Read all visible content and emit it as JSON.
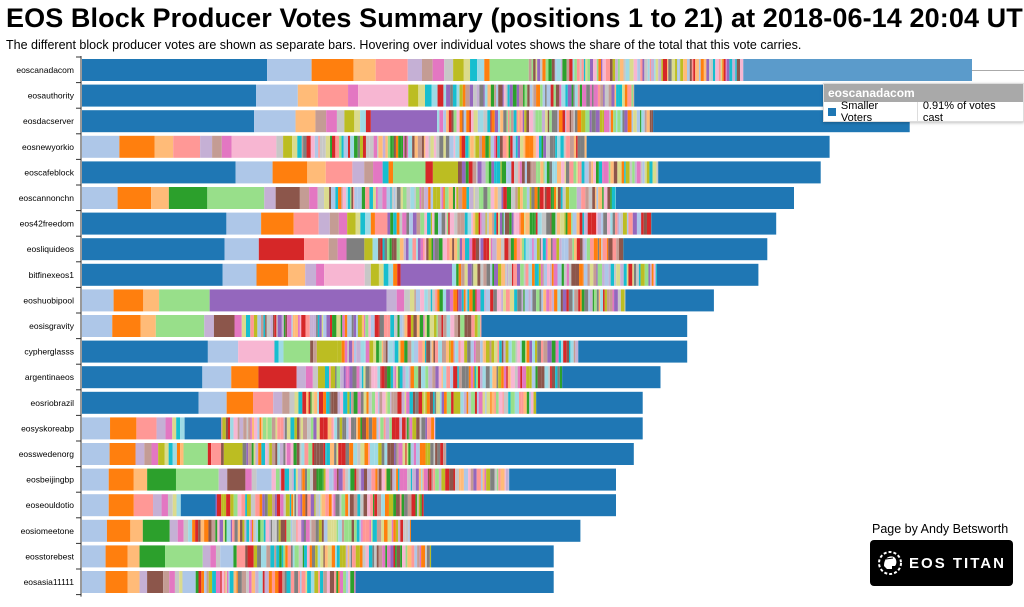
{
  "page": {
    "title": "EOS Block Producer Votes Summary (positions 1 to 21) at 2018-06-14 20:04 UTC",
    "subtitle": "The different block producer votes are shown as separate bars. Hovering over individual votes shows the share of the total that this vote carries.",
    "credit": "Page by Andy Betsworth",
    "logo_text": "EOS TITAN",
    "logo_icon": "spartan-helmet-gear-icon"
  },
  "tooltip": {
    "producer": "eoscanadacom",
    "series": "Smaller Voters",
    "value": "0.91% of votes cast",
    "swatch_color": "#1f77b4"
  },
  "chart_data": {
    "type": "bar",
    "orientation": "horizontal",
    "stacked": true,
    "title": "EOS Block Producer Votes Summary (positions 1 to 21) at 2018-06-14 20:04 UTC",
    "xlabel": "",
    "ylabel": "",
    "grid": false,
    "legend": "none",
    "value_note": "total = relative total votes (largest = 1.0); segments = estimated share of each bar per individual vote, final segment = Smaller Voters",
    "palette": [
      "#1f77b4",
      "#aec7e8",
      "#ff7f0e",
      "#ffbb78",
      "#2ca02c",
      "#98df8a",
      "#d62728",
      "#ff9896",
      "#9467bd",
      "#c5b0d5",
      "#8c564b",
      "#c49c94",
      "#e377c2",
      "#f7b6d2",
      "#7f7f7f",
      "#c7c7c7",
      "#bcbd22",
      "#dbdb8d",
      "#17becf",
      "#9edae5"
    ],
    "smaller_voters_color": "#1f77b4",
    "categories": [
      "eoscanadacom",
      "eosauthority",
      "eosdacserver",
      "eosnewyorkio",
      "eoscafeblock",
      "eoscannonchn",
      "eos42freedom",
      "eosliquideos",
      "bitfinexeos1",
      "eoshuobipool",
      "eosisgravity",
      "cypherglasss",
      "argentinaeos",
      "eosriobrazil",
      "eosyskoreabp",
      "eosswedenorg",
      "eosbeijingbp",
      "eoseouldotio",
      "eosiomeetone",
      "eosstorebest",
      "eosasia11111"
    ],
    "totals": [
      1.0,
      0.94,
      0.93,
      0.84,
      0.83,
      0.8,
      0.78,
      0.77,
      0.76,
      0.71,
      0.68,
      0.68,
      0.65,
      0.63,
      0.63,
      0.62,
      0.6,
      0.6,
      0.56,
      0.53,
      0.53
    ],
    "series": [
      {
        "name": "eoscanadacom",
        "segments": [
          [
            0,
            0.208
          ],
          [
            1,
            0.05
          ],
          [
            2,
            0.047
          ],
          [
            3,
            0.025
          ],
          [
            7,
            0.036
          ],
          [
            9,
            0.016
          ],
          [
            11,
            0.012
          ],
          [
            12,
            0.013
          ],
          [
            15,
            0.01
          ],
          [
            16,
            0.012
          ],
          [
            17,
            0.007
          ],
          [
            18,
            0.008
          ],
          [
            19,
            0.008
          ],
          [
            2,
            0.006
          ],
          [
            5,
            0.044
          ]
        ],
        "tail_mixed_until": 0.743,
        "smaller_voters": 0.257
      },
      {
        "name": "eosauthority",
        "segments": [
          [
            0,
            0.208
          ],
          [
            1,
            0.05
          ],
          [
            3,
            0.024
          ],
          [
            7,
            0.036
          ],
          [
            12,
            0.012
          ],
          [
            13,
            0.06
          ],
          [
            16,
            0.012
          ],
          [
            17,
            0.008
          ],
          [
            18,
            0.008
          ],
          [
            19,
            0.007
          ],
          [
            6,
            0.007
          ]
        ],
        "tail_mixed_until": 0.66,
        "smaller_voters": 0.34
      },
      {
        "name": "eosdacserver",
        "segments": [
          [
            0,
            0.208
          ],
          [
            1,
            0.05
          ],
          [
            3,
            0.024
          ],
          [
            11,
            0.013
          ],
          [
            12,
            0.013
          ],
          [
            15,
            0.009
          ],
          [
            16,
            0.012
          ],
          [
            17,
            0.007
          ],
          [
            19,
            0.007
          ],
          [
            6,
            0.006
          ],
          [
            8,
            0.08
          ]
        ],
        "tail_mixed_until": 0.69,
        "smaller_voters": 0.31
      },
      {
        "name": "eosnewyorkio",
        "segments": [
          [
            1,
            0.05
          ],
          [
            2,
            0.047
          ],
          [
            3,
            0.025
          ],
          [
            7,
            0.036
          ],
          [
            9,
            0.016
          ],
          [
            11,
            0.013
          ],
          [
            12,
            0.013
          ],
          [
            13,
            0.06
          ],
          [
            15,
            0.009
          ],
          [
            16,
            0.012
          ],
          [
            17,
            0.007
          ],
          [
            18,
            0.006
          ]
        ],
        "tail_mixed_until": 0.675,
        "smaller_voters": 0.325
      },
      {
        "name": "eoscafeblock",
        "segments": [
          [
            0,
            0.208
          ],
          [
            1,
            0.05
          ],
          [
            2,
            0.047
          ],
          [
            3,
            0.025
          ],
          [
            7,
            0.036
          ],
          [
            9,
            0.016
          ],
          [
            11,
            0.012
          ],
          [
            12,
            0.013
          ],
          [
            18,
            0.008
          ],
          [
            2,
            0.006
          ],
          [
            5,
            0.044
          ],
          [
            6,
            0.01
          ],
          [
            16,
            0.034
          ]
        ],
        "tail_mixed_until": 0.78,
        "smaller_voters": 0.22
      },
      {
        "name": "eoscannonchn",
        "segments": [
          [
            1,
            0.05
          ],
          [
            2,
            0.047
          ],
          [
            3,
            0.025
          ],
          [
            4,
            0.054
          ],
          [
            5,
            0.08
          ],
          [
            9,
            0.016
          ],
          [
            10,
            0.034
          ],
          [
            11,
            0.013
          ],
          [
            12,
            0.012
          ],
          [
            15,
            0.009
          ],
          [
            17,
            0.007
          ]
        ],
        "tail_mixed_until": 0.75,
        "smaller_voters": 0.25
      },
      {
        "name": "eos42freedom",
        "segments": [
          [
            0,
            0.208
          ],
          [
            1,
            0.05
          ],
          [
            2,
            0.047
          ],
          [
            7,
            0.036
          ],
          [
            9,
            0.016
          ],
          [
            11,
            0.013
          ],
          [
            12,
            0.012
          ],
          [
            16,
            0.012
          ],
          [
            17,
            0.007
          ],
          [
            18,
            0.007
          ],
          [
            19,
            0.008
          ],
          [
            2,
            0.006
          ],
          [
            7,
            0.018
          ]
        ],
        "tail_mixed_until": 0.82,
        "smaller_voters": 0.18
      },
      {
        "name": "eosliquideos",
        "segments": [
          [
            0,
            0.208
          ],
          [
            1,
            0.05
          ],
          [
            6,
            0.066
          ],
          [
            7,
            0.036
          ],
          [
            11,
            0.013
          ],
          [
            12,
            0.013
          ],
          [
            14,
            0.026
          ],
          [
            16,
            0.012
          ],
          [
            19,
            0.008
          ]
        ],
        "tail_mixed_until": 0.79,
        "smaller_voters": 0.21
      },
      {
        "name": "bitfinexeos1",
        "segments": [
          [
            0,
            0.208
          ],
          [
            1,
            0.05
          ],
          [
            2,
            0.047
          ],
          [
            3,
            0.025
          ],
          [
            9,
            0.016
          ],
          [
            12,
            0.012
          ],
          [
            13,
            0.06
          ],
          [
            15,
            0.009
          ],
          [
            16,
            0.012
          ],
          [
            17,
            0.007
          ],
          [
            18,
            0.007
          ],
          [
            19,
            0.007
          ],
          [
            2,
            0.006
          ],
          [
            6,
            0.005
          ],
          [
            8,
            0.076
          ]
        ],
        "tail_mixed_until": 0.85,
        "smaller_voters": 0.15
      },
      {
        "name": "eoshuobipool",
        "segments": [
          [
            1,
            0.05
          ],
          [
            2,
            0.047
          ],
          [
            3,
            0.025
          ],
          [
            5,
            0.08
          ],
          [
            8,
            0.28
          ],
          [
            9,
            0.016
          ],
          [
            12,
            0.012
          ],
          [
            15,
            0.009
          ],
          [
            17,
            0.007
          ]
        ],
        "tail_mixed_until": 0.86,
        "smaller_voters": 0.14
      },
      {
        "name": "eosisgravity",
        "segments": [
          [
            1,
            0.05
          ],
          [
            2,
            0.047
          ],
          [
            3,
            0.025
          ],
          [
            5,
            0.08
          ],
          [
            9,
            0.016
          ],
          [
            10,
            0.034
          ],
          [
            12,
            0.012
          ],
          [
            17,
            0.007
          ],
          [
            18,
            0.007
          ]
        ],
        "tail_mixed_until": 0.66,
        "smaller_voters": 0.34
      },
      {
        "name": "cypherglasss",
        "segments": [
          [
            0,
            0.208
          ],
          [
            1,
            0.05
          ],
          [
            13,
            0.06
          ],
          [
            18,
            0.007
          ],
          [
            19,
            0.008
          ],
          [
            5,
            0.044
          ],
          [
            10,
            0.005
          ],
          [
            11,
            0.006
          ],
          [
            16,
            0.034
          ]
        ],
        "tail_mixed_until": 0.82,
        "smaller_voters": 0.18
      },
      {
        "name": "argentinaeos",
        "segments": [
          [
            0,
            0.208
          ],
          [
            1,
            0.05
          ],
          [
            2,
            0.047
          ],
          [
            6,
            0.066
          ],
          [
            9,
            0.016
          ],
          [
            12,
            0.012
          ],
          [
            15,
            0.009
          ],
          [
            16,
            0.012
          ],
          [
            18,
            0.007
          ]
        ],
        "tail_mixed_until": 0.83,
        "smaller_voters": 0.17
      },
      {
        "name": "eosriobrazil",
        "segments": [
          [
            0,
            0.208
          ],
          [
            1,
            0.05
          ],
          [
            2,
            0.047
          ],
          [
            7,
            0.036
          ],
          [
            9,
            0.016
          ],
          [
            11,
            0.013
          ],
          [
            15,
            0.009
          ],
          [
            17,
            0.007
          ],
          [
            18,
            0.007
          ]
        ],
        "tail_mixed_until": 0.81,
        "smaller_voters": 0.19
      },
      {
        "name": "eosyskoreabp",
        "segments": [
          [
            1,
            0.05
          ],
          [
            2,
            0.047
          ],
          [
            7,
            0.036
          ],
          [
            9,
            0.016
          ],
          [
            12,
            0.012
          ],
          [
            17,
            0.007
          ],
          [
            18,
            0.007
          ],
          [
            19,
            0.008
          ],
          [
            0,
            0.065
          ]
        ],
        "tail_mixed_until": 0.63,
        "smaller_voters": 0.37
      },
      {
        "name": "eosswedenorg",
        "segments": [
          [
            1,
            0.05
          ],
          [
            2,
            0.047
          ],
          [
            9,
            0.016
          ],
          [
            11,
            0.013
          ],
          [
            12,
            0.012
          ],
          [
            16,
            0.012
          ],
          [
            17,
            0.007
          ],
          [
            18,
            0.007
          ],
          [
            19,
            0.008
          ],
          [
            2,
            0.006
          ],
          [
            3,
            0.006
          ],
          [
            5,
            0.044
          ],
          [
            6,
            0.006
          ],
          [
            7,
            0.018
          ],
          [
            10,
            0.005
          ],
          [
            16,
            0.034
          ]
        ],
        "tail_mixed_until": 0.66,
        "smaller_voters": 0.34
      },
      {
        "name": "eosbeijingbp",
        "segments": [
          [
            1,
            0.05
          ],
          [
            2,
            0.047
          ],
          [
            3,
            0.025
          ],
          [
            4,
            0.054
          ],
          [
            5,
            0.08
          ],
          [
            9,
            0.016
          ],
          [
            10,
            0.034
          ],
          [
            12,
            0.012
          ],
          [
            15,
            0.009
          ],
          [
            1,
            0.028
          ]
        ],
        "tail_mixed_until": 0.8,
        "smaller_voters": 0.2
      },
      {
        "name": "eoseouldotio",
        "segments": [
          [
            1,
            0.05
          ],
          [
            2,
            0.047
          ],
          [
            7,
            0.036
          ],
          [
            9,
            0.016
          ],
          [
            12,
            0.012
          ],
          [
            15,
            0.009
          ],
          [
            17,
            0.007
          ],
          [
            19,
            0.008
          ],
          [
            0,
            0.065
          ]
        ],
        "tail_mixed_until": 0.64,
        "smaller_voters": 0.36
      },
      {
        "name": "eosiomeetone",
        "segments": [
          [
            1,
            0.05
          ],
          [
            2,
            0.047
          ],
          [
            3,
            0.025
          ],
          [
            4,
            0.054
          ],
          [
            9,
            0.016
          ],
          [
            12,
            0.012
          ],
          [
            15,
            0.009
          ],
          [
            19,
            0.008
          ],
          [
            2,
            0.006
          ],
          [
            6,
            0.006
          ],
          [
            10,
            0.005
          ]
        ],
        "tail_mixed_until": 0.66,
        "smaller_voters": 0.34
      },
      {
        "name": "eosstorebest",
        "segments": [
          [
            1,
            0.05
          ],
          [
            2,
            0.047
          ],
          [
            3,
            0.025
          ],
          [
            4,
            0.054
          ],
          [
            5,
            0.08
          ],
          [
            9,
            0.016
          ],
          [
            12,
            0.012
          ],
          [
            15,
            0.009
          ],
          [
            1,
            0.028
          ],
          [
            4,
            0.007
          ],
          [
            7,
            0.018
          ],
          [
            10,
            0.005
          ],
          [
            6,
            0.013
          ]
        ],
        "tail_mixed_until": 0.74,
        "smaller_voters": 0.26
      },
      {
        "name": "eosasia11111",
        "segments": [
          [
            1,
            0.05
          ],
          [
            2,
            0.047
          ],
          [
            3,
            0.025
          ],
          [
            9,
            0.016
          ],
          [
            10,
            0.034
          ],
          [
            11,
            0.013
          ],
          [
            12,
            0.012
          ],
          [
            15,
            0.009
          ],
          [
            17,
            0.007
          ],
          [
            1,
            0.028
          ],
          [
            4,
            0.006
          ],
          [
            6,
            0.006
          ]
        ],
        "tail_mixed_until": 0.58,
        "smaller_voters": 0.42
      }
    ]
  }
}
